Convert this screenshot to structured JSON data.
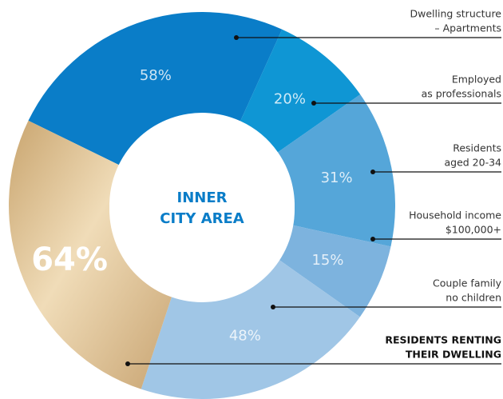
{
  "chart_data": {
    "type": "donut",
    "center_title": [
      "INNER",
      "CITY AREA"
    ],
    "series": [
      {
        "name": [
          "Dwelling structure",
          "– Apartments"
        ],
        "value": 58,
        "value_label": "58%",
        "color": "#0a7dc8"
      },
      {
        "name": [
          "Employed",
          "as professionals"
        ],
        "value": 20,
        "value_label": "20%",
        "color": "#0f96d4"
      },
      {
        "name": [
          "Residents",
          "aged 20-34"
        ],
        "value": 31,
        "value_label": "31%",
        "color": "#55a6d9"
      },
      {
        "name": [
          "Household income",
          "$100,000+"
        ],
        "value": 15,
        "value_label": "15%",
        "color": "#7db3de"
      },
      {
        "name": [
          "Couple family",
          "no children"
        ],
        "value": 48,
        "value_label": "48%",
        "color": "#a0c6e6"
      },
      {
        "name": [
          "RESIDENTS RENTING",
          "THEIR DWELLING"
        ],
        "value": 64,
        "value_label": "64%",
        "color": "#e6cc9f",
        "highlight": true
      }
    ]
  }
}
